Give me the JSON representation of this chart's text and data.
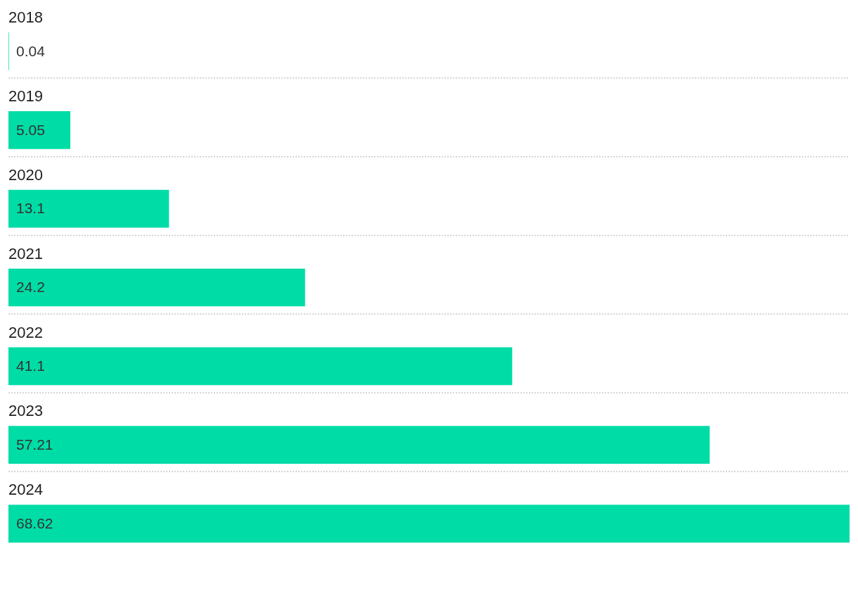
{
  "chart_data": {
    "type": "bar",
    "orientation": "horizontal",
    "categories": [
      "2018",
      "2019",
      "2020",
      "2021",
      "2022",
      "2023",
      "2024"
    ],
    "values": [
      0.04,
      5.05,
      13.1,
      24.2,
      41.1,
      57.21,
      68.62
    ],
    "color": "#00dca6",
    "data_labels": true,
    "grid": "y",
    "legend": false
  }
}
